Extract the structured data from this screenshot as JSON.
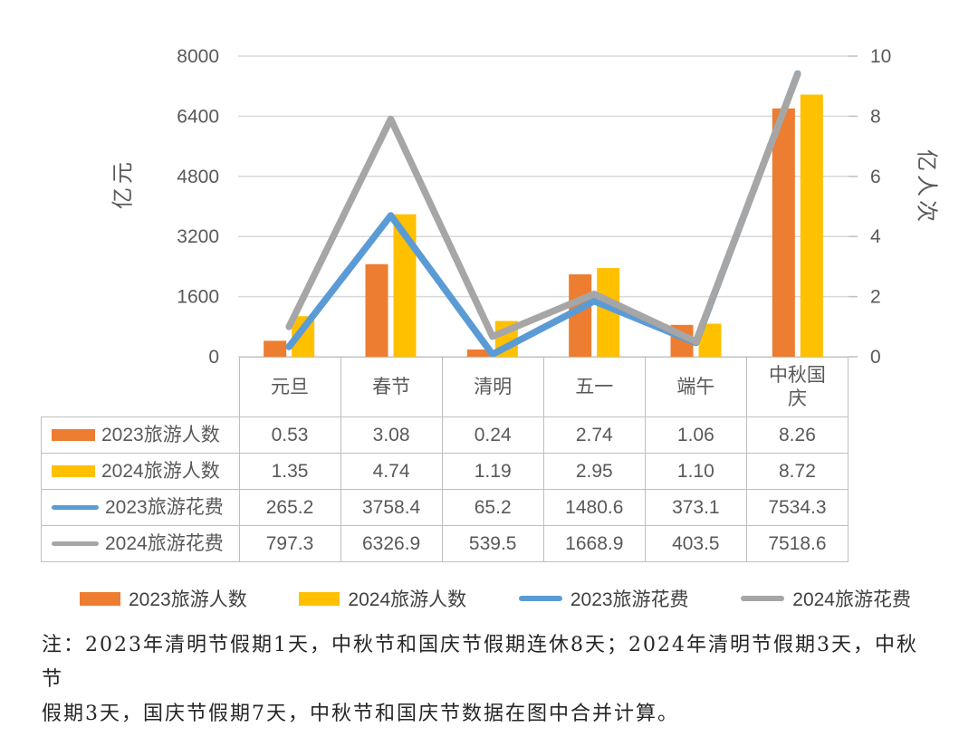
{
  "chart_data": {
    "type": "combo-bar-line",
    "categories": [
      "元旦",
      "春节",
      "清明",
      "五一",
      "端午",
      "中秋国庆"
    ],
    "series": [
      {
        "name": "2023旅游人数",
        "type": "bar",
        "axis": "right",
        "color": "#ED7D31",
        "values": [
          0.53,
          3.08,
          0.24,
          2.74,
          1.06,
          8.26
        ],
        "display": [
          "0.53",
          "3.08",
          "0.24",
          "2.74",
          "1.06",
          "8.26"
        ]
      },
      {
        "name": "2024旅游人数",
        "type": "bar",
        "axis": "right",
        "color": "#FFC000",
        "values": [
          1.35,
          4.74,
          1.19,
          2.95,
          1.1,
          8.72
        ],
        "display": [
          "1.35",
          "4.74",
          "1.19",
          "2.95",
          "1.10",
          "8.72"
        ]
      },
      {
        "name": "2023旅游花费",
        "type": "line",
        "axis": "left",
        "color": "#5B9BD5",
        "values": [
          265.2,
          3758.4,
          65.2,
          1480.6,
          373.1,
          7534.3
        ],
        "display": [
          "265.2",
          "3758.4",
          "65.2",
          "1480.6",
          "373.1",
          "7534.3"
        ]
      },
      {
        "name": "2024旅游花费",
        "type": "line",
        "axis": "left",
        "color": "#A6A6A6",
        "values": [
          797.3,
          6326.9,
          539.5,
          1668.9,
          403.5,
          7518.6
        ],
        "display": [
          "797.3",
          "6326.9",
          "539.5",
          "1668.9",
          "403.5",
          "7518.6"
        ]
      }
    ],
    "left_axis": {
      "title": "亿元",
      "min": 0,
      "max": 8000,
      "ticks": [
        0,
        1600,
        3200,
        4800,
        6400,
        8000
      ]
    },
    "right_axis": {
      "title": "亿人次",
      "min": 0,
      "max": 10,
      "ticks": [
        0,
        2,
        4,
        6,
        8,
        10
      ]
    },
    "grid": true,
    "legend_position": "bottom",
    "data_table": true
  },
  "note": {
    "lines": [
      "注：2023年清明节假期1天，中秋节和国庆节假期连休8天；2024年清明节假期3天，中秋节",
      "假期3天，国庆节假期7天，中秋节和国庆节数据在图中合并计算。"
    ]
  },
  "styles": {
    "grid_color": "#D9D9D9",
    "table_border_color": "#BFBFBF",
    "axis_text_color": "#595959",
    "legend_text_color": "#404040",
    "note_text_color": "#262626"
  }
}
